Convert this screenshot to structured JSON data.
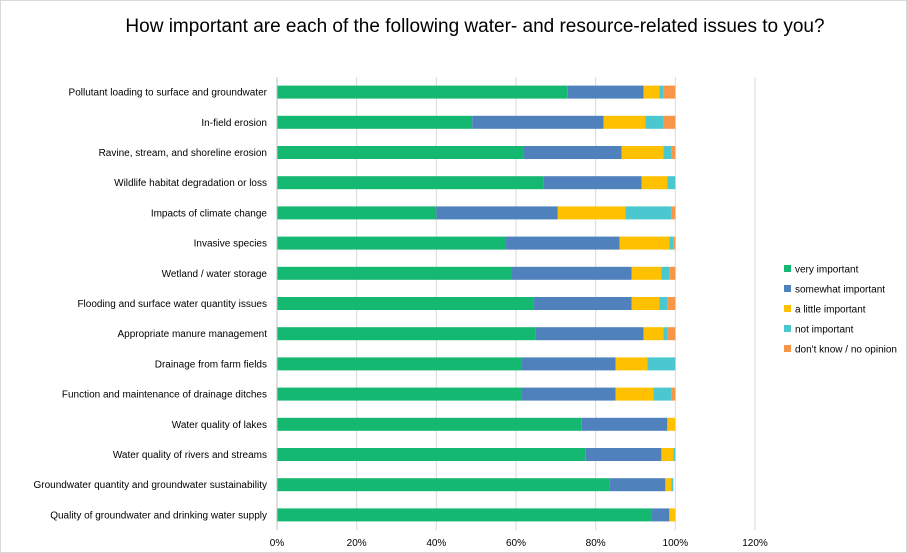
{
  "chart_data": {
    "type": "bar",
    "orientation": "horizontal",
    "stacked": true,
    "title": "How important are each of the following water- and resource-related issues to you?",
    "xlabel": "",
    "ylabel": "",
    "xlim": [
      0,
      120
    ],
    "x_ticks": [
      "0%",
      "20%",
      "40%",
      "60%",
      "80%",
      "100%",
      "120%"
    ],
    "grid": "vertical gridlines",
    "legend_position": "right",
    "categories": [
      "Pollutant loading to surface and groundwater",
      "In-field erosion",
      "Ravine, stream, and shoreline erosion",
      "Wildlife habitat degradation or loss",
      "Impacts of climate change",
      "Invasive species",
      "Wetland / water storage",
      "Flooding and surface water quantity issues",
      "Appropriate manure management",
      "Drainage from farm fields",
      "Function and maintenance of drainage ditches",
      "Water quality of lakes",
      "Water quality of rivers and streams",
      "Groundwater quantity and groundwater sustainability",
      "Quality of groundwater and drinking water supply"
    ],
    "series": [
      {
        "name": "very important",
        "color": "#14b870",
        "values": [
          73,
          49,
          62,
          67,
          40,
          57.5,
          59,
          64.5,
          65,
          61.5,
          61.5,
          76.5,
          77.5,
          83.5,
          94
        ]
      },
      {
        "name": "somewhat important",
        "color": "#4f81bd",
        "values": [
          19,
          33,
          24.5,
          24.5,
          30.5,
          28.5,
          30,
          24.5,
          27,
          23.5,
          23.5,
          21.5,
          19,
          14,
          4.5
        ]
      },
      {
        "name": "a little important",
        "color": "#ffc000",
        "values": [
          4,
          10.5,
          10.5,
          6.5,
          17,
          12.5,
          7.5,
          7,
          5,
          8,
          9.5,
          2,
          3,
          1.5,
          1.5
        ]
      },
      {
        "name": "not important",
        "color": "#4bc7cf",
        "values": [
          1,
          4.5,
          2,
          2,
          11.5,
          1,
          2,
          2,
          1,
          7,
          4.5,
          0,
          0.5,
          0.5,
          0
        ]
      },
      {
        "name": "don't know / no opinion",
        "color": "#f79646",
        "values": [
          3,
          3,
          1,
          0,
          1,
          0.5,
          1.5,
          2,
          2,
          0,
          1,
          0,
          0,
          0,
          0
        ]
      }
    ]
  }
}
